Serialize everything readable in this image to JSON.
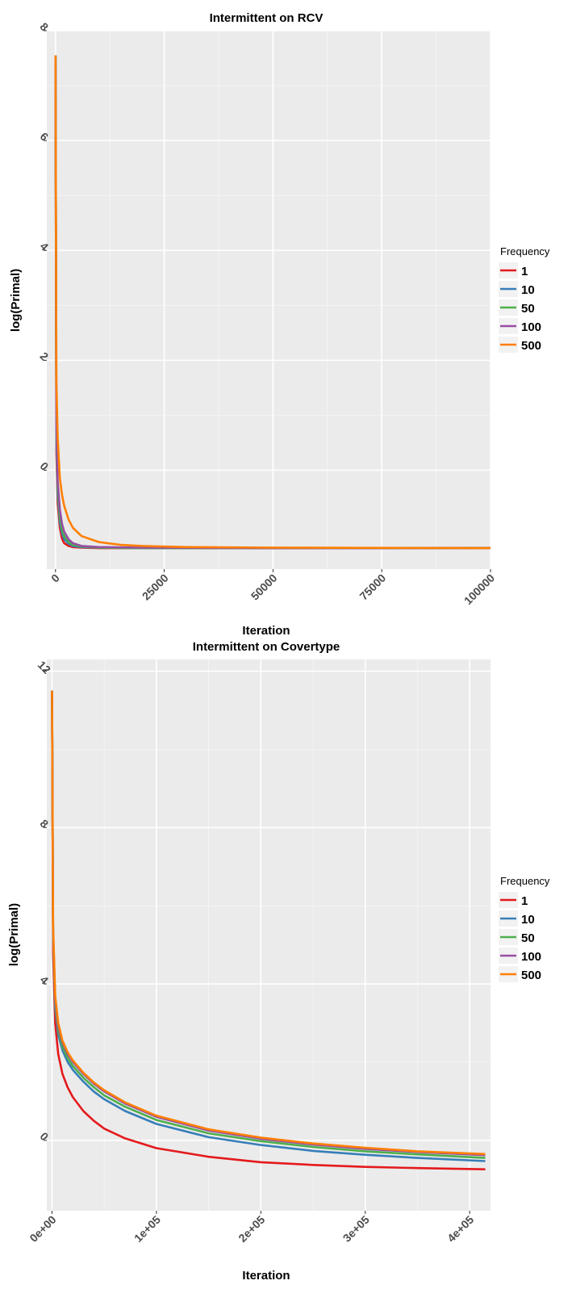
{
  "chart_data": [
    {
      "type": "line",
      "title": "Intermittent on RCV",
      "xlabel": "Iteration",
      "ylabel": "log(Primal)",
      "xlim": [
        -2000,
        100000
      ],
      "ylim": [
        -1.8,
        8.0
      ],
      "x_ticks": [
        0,
        25000,
        50000,
        75000,
        100000
      ],
      "x_tick_labels": [
        "0",
        "25000",
        "50000",
        "75000",
        "100000"
      ],
      "y_ticks": [
        0,
        2,
        4,
        6,
        8
      ],
      "y_tick_labels": [
        "0",
        "2",
        "4",
        "6",
        "8"
      ],
      "grid": true,
      "legend_title": "Frequency",
      "legend_placement": "right",
      "series": [
        {
          "name": "1",
          "color": "#e41a1c",
          "x": [
            0,
            200,
            500,
            1000,
            1500,
            2000,
            3000,
            4000,
            6000,
            10000,
            20000,
            50000,
            100000
          ],
          "y": [
            7.55,
            0.3,
            -0.6,
            -1.05,
            -1.25,
            -1.33,
            -1.38,
            -1.4,
            -1.41,
            -1.42,
            -1.42,
            -1.42,
            -1.42
          ]
        },
        {
          "name": "10",
          "color": "#377eb8",
          "x": [
            0,
            200,
            500,
            1000,
            1500,
            2000,
            3000,
            4000,
            6000,
            10000,
            20000,
            50000,
            100000
          ],
          "y": [
            7.55,
            0.5,
            -0.45,
            -0.95,
            -1.15,
            -1.26,
            -1.34,
            -1.38,
            -1.4,
            -1.41,
            -1.42,
            -1.42,
            -1.42
          ]
        },
        {
          "name": "50",
          "color": "#4daf4a",
          "x": [
            0,
            200,
            500,
            1000,
            1500,
            2000,
            3000,
            4000,
            6000,
            10000,
            20000,
            50000,
            100000
          ],
          "y": [
            7.55,
            0.6,
            -0.35,
            -0.85,
            -1.08,
            -1.2,
            -1.31,
            -1.36,
            -1.39,
            -1.41,
            -1.42,
            -1.42,
            -1.42
          ]
        },
        {
          "name": "100",
          "color": "#984ea3",
          "x": [
            0,
            200,
            500,
            1000,
            1500,
            2000,
            3000,
            4000,
            6000,
            10000,
            20000,
            50000,
            100000
          ],
          "y": [
            7.55,
            0.8,
            -0.2,
            -0.72,
            -0.98,
            -1.12,
            -1.26,
            -1.33,
            -1.38,
            -1.4,
            -1.41,
            -1.42,
            -1.42
          ]
        },
        {
          "name": "500",
          "color": "#ff7f00",
          "x": [
            0,
            200,
            500,
            1000,
            1500,
            2000,
            3000,
            4000,
            6000,
            10000,
            15000,
            20000,
            30000,
            50000,
            100000
          ],
          "y": [
            7.55,
            1.6,
            0.6,
            -0.15,
            -0.45,
            -0.65,
            -0.9,
            -1.05,
            -1.2,
            -1.31,
            -1.36,
            -1.38,
            -1.4,
            -1.41,
            -1.42
          ]
        }
      ]
    },
    {
      "type": "line",
      "title": "Intermittent on Covertype",
      "xlabel": "Iteration",
      "ylabel": "log(Primal)",
      "xlim": [
        -5000,
        420000
      ],
      "ylim": [
        -1.8,
        12.3
      ],
      "x_ticks": [
        0,
        100000,
        200000,
        300000,
        400000
      ],
      "x_tick_labels": [
        "0e+00",
        "1e+05",
        "2e+05",
        "3e+05",
        "4e+05"
      ],
      "y_ticks": [
        0,
        4,
        8,
        12
      ],
      "y_tick_labels": [
        "0",
        "4",
        "8",
        "12"
      ],
      "grid": true,
      "legend_title": "Frequency",
      "legend_placement": "right",
      "series": [
        {
          "name": "1",
          "color": "#e41a1c",
          "x": [
            0,
            1000,
            3000,
            6000,
            10000,
            15000,
            20000,
            30000,
            40000,
            50000,
            70000,
            100000,
            150000,
            200000,
            250000,
            300000,
            350000,
            415000
          ],
          "y": [
            11.5,
            4.8,
            3.0,
            2.2,
            1.7,
            1.35,
            1.1,
            0.75,
            0.5,
            0.3,
            0.05,
            -0.2,
            -0.42,
            -0.56,
            -0.63,
            -0.68,
            -0.71,
            -0.74
          ]
        },
        {
          "name": "10",
          "color": "#377eb8",
          "x": [
            0,
            1000,
            3000,
            6000,
            10000,
            15000,
            20000,
            30000,
            40000,
            50000,
            70000,
            100000,
            150000,
            200000,
            250000,
            300000,
            350000,
            415000
          ],
          "y": [
            11.5,
            5.2,
            3.4,
            2.7,
            2.3,
            2.0,
            1.8,
            1.5,
            1.25,
            1.05,
            0.75,
            0.42,
            0.08,
            -0.12,
            -0.27,
            -0.37,
            -0.45,
            -0.53
          ]
        },
        {
          "name": "50",
          "color": "#4daf4a",
          "x": [
            0,
            1000,
            3000,
            6000,
            10000,
            15000,
            20000,
            30000,
            40000,
            50000,
            70000,
            100000,
            150000,
            200000,
            250000,
            300000,
            350000,
            415000
          ],
          "y": [
            11.5,
            5.3,
            3.5,
            2.8,
            2.4,
            2.1,
            1.9,
            1.6,
            1.36,
            1.15,
            0.86,
            0.52,
            0.18,
            -0.02,
            -0.17,
            -0.28,
            -0.36,
            -0.45
          ]
        },
        {
          "name": "100",
          "color": "#984ea3",
          "x": [
            0,
            1000,
            3000,
            6000,
            10000,
            15000,
            20000,
            30000,
            40000,
            50000,
            70000,
            100000,
            150000,
            200000,
            250000,
            300000,
            350000,
            415000
          ],
          "y": [
            11.5,
            5.4,
            3.6,
            2.9,
            2.5,
            2.2,
            2.0,
            1.7,
            1.45,
            1.25,
            0.94,
            0.6,
            0.25,
            0.04,
            -0.11,
            -0.22,
            -0.3,
            -0.38
          ]
        },
        {
          "name": "500",
          "color": "#ff7f00",
          "x": [
            0,
            1000,
            3000,
            6000,
            10000,
            15000,
            20000,
            30000,
            40000,
            50000,
            70000,
            100000,
            150000,
            200000,
            250000,
            300000,
            350000,
            415000
          ],
          "y": [
            11.5,
            5.5,
            3.7,
            3.0,
            2.55,
            2.25,
            2.04,
            1.73,
            1.48,
            1.28,
            0.97,
            0.63,
            0.28,
            0.07,
            -0.08,
            -0.19,
            -0.28,
            -0.35
          ]
        }
      ]
    }
  ]
}
